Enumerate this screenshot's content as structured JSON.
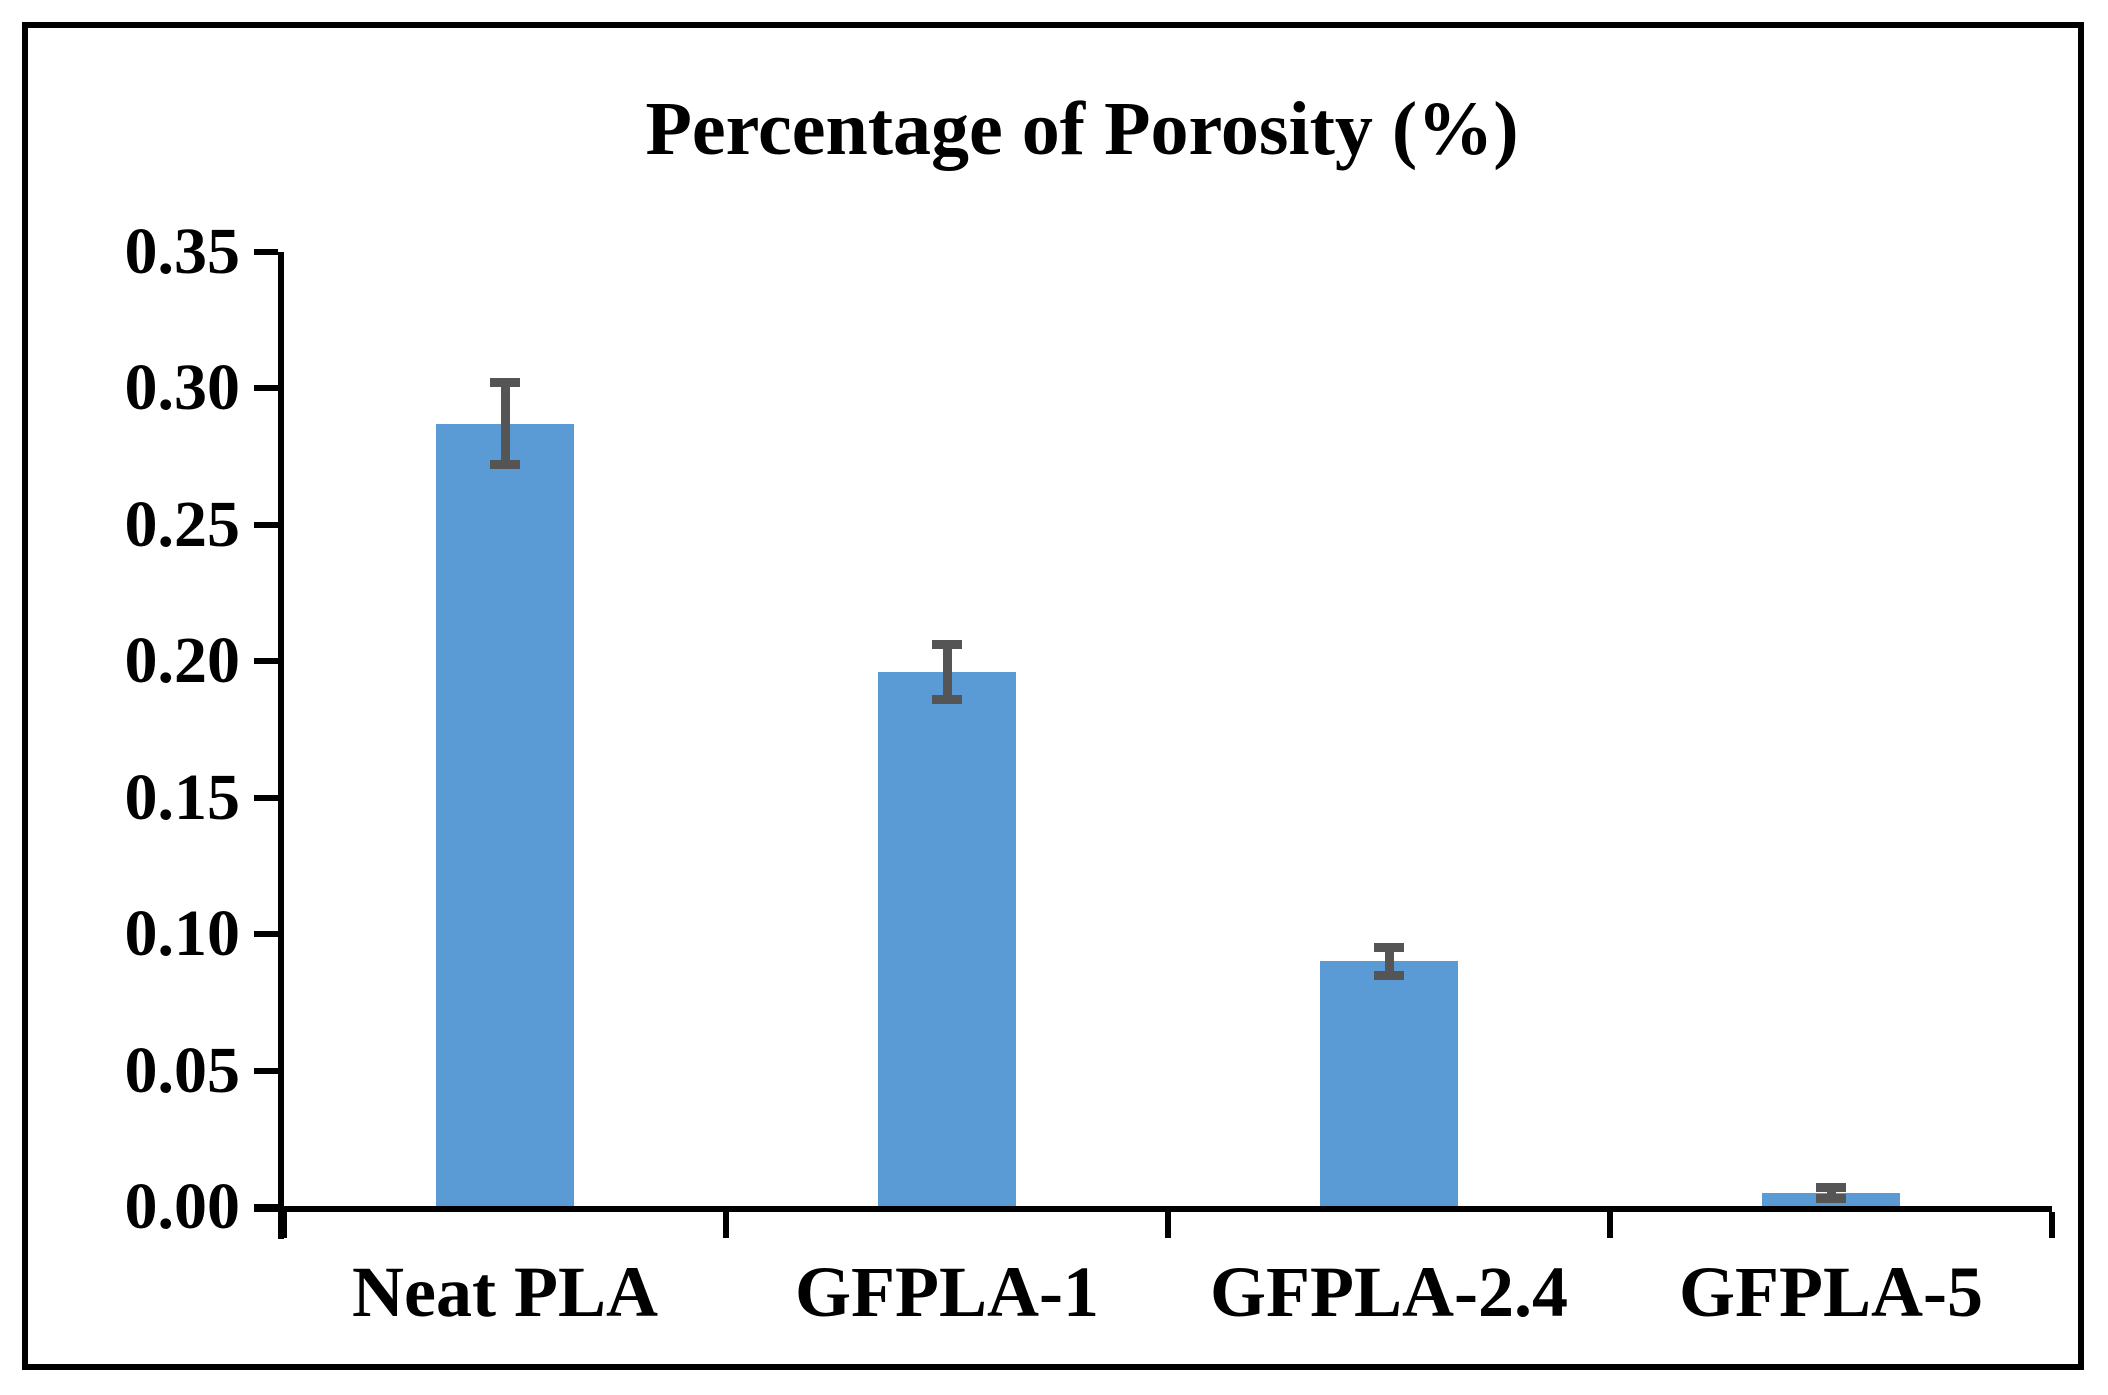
{
  "chart_data": {
    "type": "bar",
    "title": "Percentage of Porosity (%)",
    "categories": [
      "Neat PLA",
      "GFPLA-1",
      "GFPLA-2.4",
      "GFPLA-5"
    ],
    "values": [
      0.287,
      0.196,
      0.09,
      0.005
    ],
    "error_bars": [
      0.015,
      0.01,
      0.005,
      0.002
    ],
    "ylim": [
      0,
      0.35
    ],
    "ytick_step": 0.05,
    "ytick_labels": [
      "0.00",
      "0.05",
      "0.10",
      "0.15",
      "0.20",
      "0.25",
      "0.30",
      "0.35"
    ],
    "xlabel": "",
    "ylabel": "",
    "grid": false,
    "legend_position": "none",
    "colors": {
      "bar_fill": "#5B9BD5",
      "error_bar": "#555555",
      "axis": "#000000",
      "text": "#000000",
      "frame_border": "#000000",
      "background": "#FFFFFF"
    }
  }
}
